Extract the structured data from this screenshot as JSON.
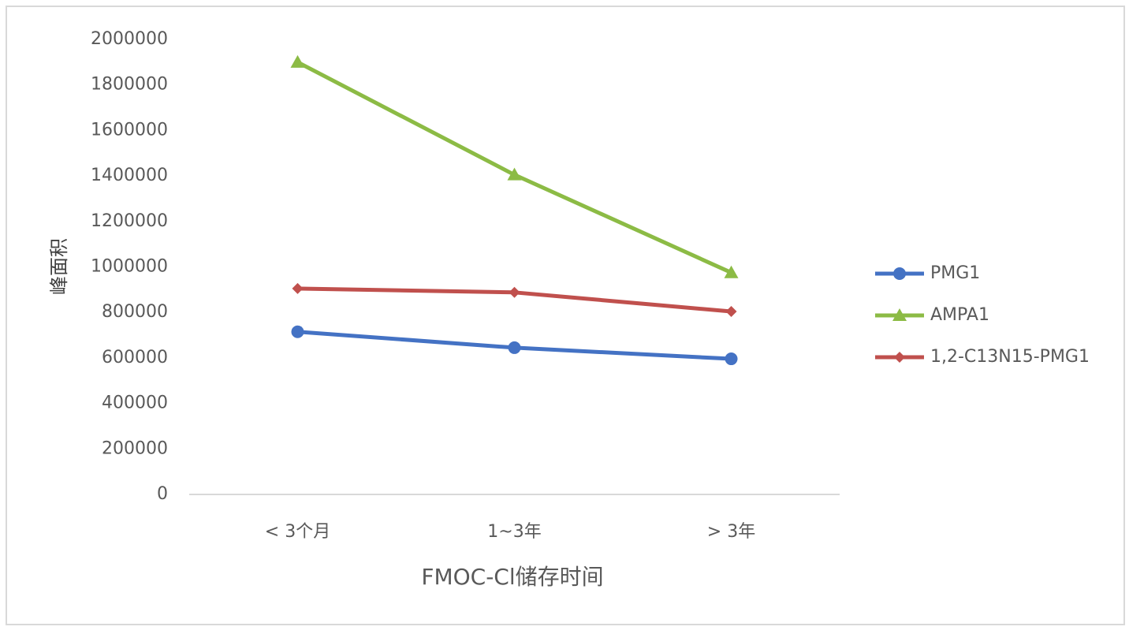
{
  "chart_data": {
    "type": "line",
    "x_label": "FMOC-Cl储存时间",
    "y_label": "峰面积",
    "categories": [
      "< 3个月",
      "1~3年",
      "> 3年"
    ],
    "series": [
      {
        "name": "PMG1",
        "color": "#4472c4",
        "marker": "circle",
        "values": [
          715000,
          645000,
          596000
        ]
      },
      {
        "name": "AMPA1",
        "color": "#8cbb45",
        "marker": "triangle",
        "values": [
          1900000,
          1405000,
          975000
        ]
      },
      {
        "name": "1,2-C13N15-PMG1",
        "color": "#c0504d",
        "marker": "diamond",
        "values": [
          905000,
          888000,
          804000
        ]
      }
    ],
    "ylim": [
      0,
      2000000
    ],
    "yticks": [
      0,
      200000,
      400000,
      600000,
      800000,
      1000000,
      1200000,
      1400000,
      1600000,
      1800000,
      2000000
    ],
    "grid": false,
    "legend": "right"
  }
}
